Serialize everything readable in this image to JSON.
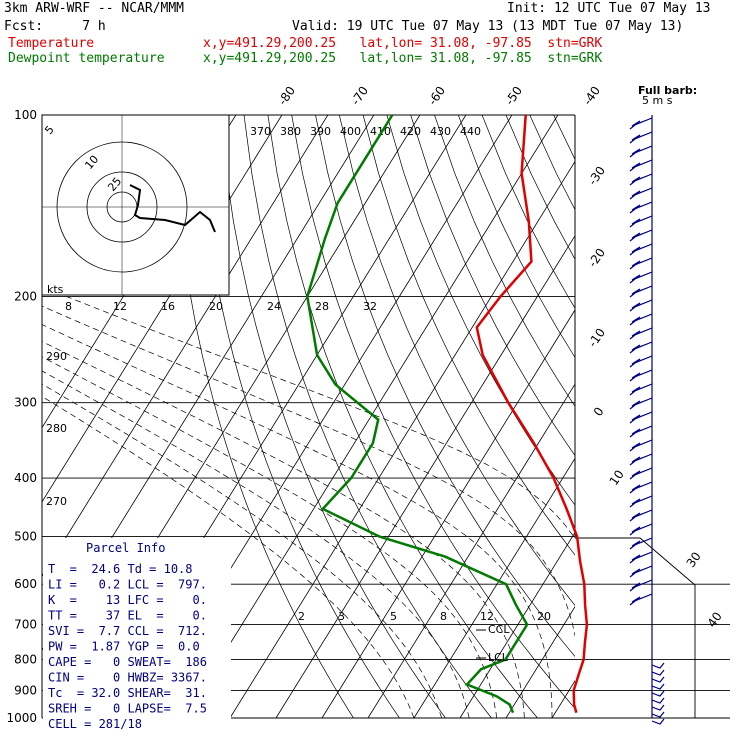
{
  "header": {
    "model": "3km ARW-WRF -- NCAR/MMM",
    "init": "Init: 12 UTC Tue 07 May 13",
    "fcst": "Fcst:     7 h",
    "valid": "Valid: 19 UTC Tue 07 May 13 (13 MDT Tue 07 May 13)",
    "temp_label": "Temperature",
    "dew_label": "Dewpoint temperature",
    "temp_loc": "x,y=491.29,200.25   lat,lon= 31.08, -97.85  stn=GRK",
    "dew_loc": "x,y=491.29,200.25   lat,lon= 31.08, -97.85  stn=GRK"
  },
  "colors": {
    "temperature": "#e00000",
    "dewpoint": "#007a00",
    "parcel_text": "#000080",
    "barbs": "#000080"
  },
  "chart_data": {
    "type": "line",
    "chart_kind": "skew-T log-p",
    "pressure_ticks": [
      "100",
      "200",
      "300",
      "400",
      "500",
      "600",
      "700",
      "800",
      "900",
      "1000"
    ],
    "isotherm_labels_top": [
      "-80",
      "-70",
      "-60",
      "-50",
      "-40"
    ],
    "isotherm_labels_right": [
      "-30",
      "-20",
      "-10",
      "0",
      "10"
    ],
    "theta_labels": [
      "370",
      "380",
      "390",
      "400",
      "410",
      "420",
      "430",
      "440"
    ],
    "theta_labels_left": [
      "290",
      "280",
      "270"
    ],
    "mixing_ratio_labels": [
      "2",
      "3",
      "5",
      "8",
      "12",
      "20"
    ],
    "right_labels": [
      "30",
      "40"
    ],
    "hodograph": {
      "speed_label": "kts",
      "ring_labels": [
        "5",
        "10",
        "25"
      ],
      "speed_axis": [
        "8",
        "12",
        "16",
        "20",
        "24",
        "28",
        "32"
      ]
    },
    "barb_legend": [
      "Full barb:",
      "5 m s"
    ],
    "level_markers": [
      "CCL",
      "LCL"
    ],
    "series": [
      {
        "name": "Temperature",
        "p": [
          100,
          125,
          150,
          175,
          200,
          225,
          250,
          300,
          350,
          400,
          450,
          500,
          550,
          600,
          650,
          700,
          750,
          800,
          850,
          900,
          950,
          980
        ],
        "t": [
          -67,
          -60,
          -52,
          -46,
          -48,
          -49,
          -44,
          -32,
          -21,
          -12,
          -5,
          1,
          5,
          9,
          12,
          15,
          17,
          19,
          20,
          21,
          23,
          24.6
        ]
      },
      {
        "name": "Dewpoint temperature",
        "p": [
          100,
          120,
          140,
          160,
          200,
          250,
          280,
          320,
          350,
          400,
          450,
          500,
          540,
          600,
          650,
          700,
          750,
          800,
          830,
          880,
          920,
          950,
          980
        ],
        "t": [
          -96,
          -96,
          -96,
          -94,
          -90,
          -80,
          -72,
          -58,
          -56,
          -56,
          -58,
          -42,
          -25,
          -8,
          -3,
          2,
          2,
          2,
          -2,
          -3,
          5,
          9,
          10.8
        ]
      }
    ]
  },
  "parcel": {
    "title": "Parcel Info",
    "rows": [
      "T  =  24.6 Td = 10.8",
      "LI =   0.2 LCL =  797.",
      "K  =    13 LFC =    0.",
      "TT =    37 EL  =    0.",
      "SVI =  7.7 CCL =  712.",
      "PW =  1.87 YGP =  0.0",
      "CAPE =   0 SWEAT=  186",
      "CIN =    0 HWBZ= 3367.",
      "Tc  = 32.0 SHEAR=  31.",
      "SREH =   0 LAPSE=  7.5",
      "CELL = 281/18"
    ]
  }
}
